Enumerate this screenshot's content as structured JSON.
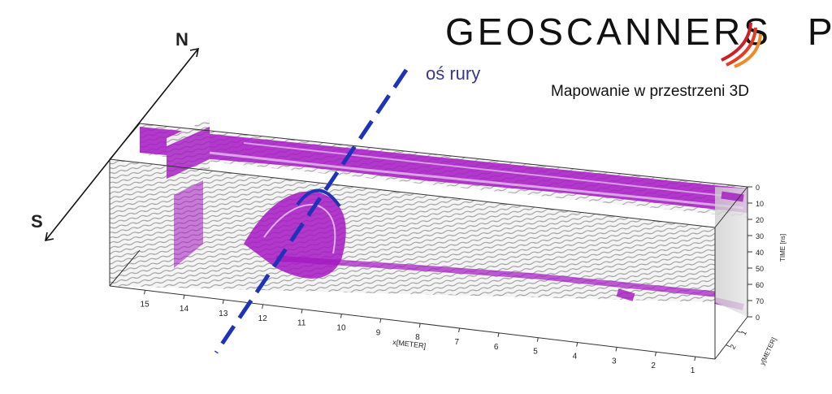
{
  "logo": {
    "brand": "GEOSCANNERS",
    "tld": "PL",
    "swoosh_colors": [
      "#e83a22",
      "#f08a24",
      "#c9202a"
    ]
  },
  "header": {
    "subtitle": "Mapowanie w przestrzeni 3D"
  },
  "annotation": {
    "pipe_axis_label": "oś rury",
    "pipe_axis_color": "#1f33b8"
  },
  "compass": {
    "north": "N",
    "south": "S"
  },
  "axes": {
    "x": {
      "label": "x[METER]",
      "ticks": [
        "15",
        "14",
        "13",
        "12",
        "11",
        "10",
        "9",
        "8",
        "7",
        "6",
        "5",
        "4",
        "3",
        "2",
        "1"
      ]
    },
    "time": {
      "label": "TIME [ns]",
      "ticks": [
        "0",
        "10",
        "20",
        "30",
        "40",
        "50",
        "60",
        "70",
        "0"
      ]
    },
    "y": {
      "label": "y[METER]",
      "ticks": [
        "1",
        "2"
      ]
    }
  },
  "colors": {
    "anomaly": "#a416c2",
    "radargram_grey": "#8a8a8a",
    "frame": "#333333"
  }
}
